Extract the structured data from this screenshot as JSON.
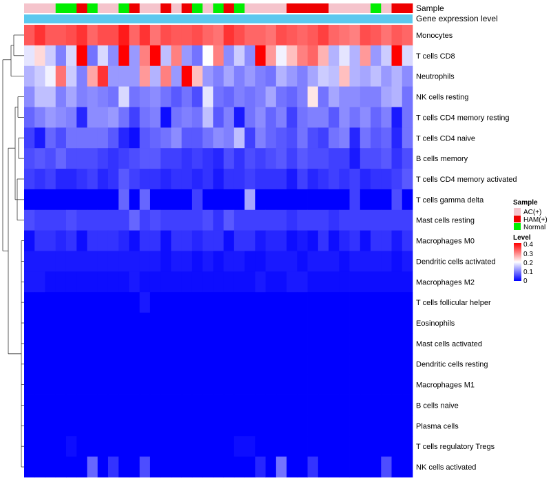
{
  "chart_data": {
    "type": "heatmap",
    "title": "",
    "annotation_tracks": [
      "Sample",
      "Gene expression level"
    ],
    "gene_expression_color": "#5BC8EE",
    "legend": {
      "sample_title": "Sample",
      "sample_entries": [
        {
          "label": "AC(+)",
          "color": "#F5C4CC"
        },
        {
          "label": "HAM(+)",
          "color": "#EE0000"
        },
        {
          "label": "Normal",
          "color": "#00EE00"
        }
      ],
      "level_title": "Level",
      "level_ticks": [
        "0.4",
        "0.3",
        "0.2",
        "0.1",
        "0"
      ],
      "color_low": "#0000FF",
      "color_mid": "#FFFFFF",
      "color_high": "#FF0000",
      "range": [
        0,
        0.4
      ]
    },
    "samples": [
      "AC(+)",
      "AC(+)",
      "AC(+)",
      "Normal",
      "Normal",
      "HAM(+)",
      "Normal",
      "AC(+)",
      "AC(+)",
      "Normal",
      "HAM(+)",
      "AC(+)",
      "AC(+)",
      "HAM(+)",
      "AC(+)",
      "HAM(+)",
      "Normal",
      "AC(+)",
      "Normal",
      "HAM(+)",
      "Normal",
      "AC(+)",
      "AC(+)",
      "AC(+)",
      "AC(+)",
      "HAM(+)",
      "HAM(+)",
      "HAM(+)",
      "HAM(+)",
      "AC(+)",
      "AC(+)",
      "AC(+)",
      "AC(+)",
      "Normal",
      "AC(+)",
      "HAM(+)",
      "HAM(+)"
    ],
    "rows": [
      "Monocytes",
      "T cells CD8",
      "Neutrophils",
      "NK cells resting",
      "T cells CD4 memory resting",
      "T cells CD4 naive",
      "B cells memory",
      "T cells CD4 memory activated",
      "T cells gamma delta",
      "Mast cells resting",
      "Macrophages M0",
      "Dendritic cells activated",
      "Macrophages M2",
      "T cells follicular helper",
      "Eosinophils",
      "Mast cells activated",
      "Dendritic cells resting",
      "Macrophages M1",
      "B cells naive",
      "Plasma cells",
      "T cells regulatory  Tregs",
      "NK cells activated"
    ],
    "values": [
      [
        0.33,
        0.36,
        0.33,
        0.33,
        0.34,
        0.36,
        0.32,
        0.34,
        0.34,
        0.38,
        0.32,
        0.36,
        0.31,
        0.34,
        0.33,
        0.33,
        0.34,
        0.32,
        0.31,
        0.36,
        0.34,
        0.32,
        0.32,
        0.31,
        0.34,
        0.33,
        0.32,
        0.33,
        0.35,
        0.32,
        0.31,
        0.3,
        0.34,
        0.33,
        0.31,
        0.33,
        0.32
      ],
      [
        0.18,
        0.23,
        0.16,
        0.1,
        0.17,
        0.4,
        0.09,
        0.17,
        0.11,
        0.4,
        0.12,
        0.3,
        0.4,
        0.15,
        0.3,
        0.12,
        0.09,
        0.2,
        0.3,
        0.11,
        0.16,
        0.11,
        0.4,
        0.28,
        0.19,
        0.25,
        0.3,
        0.32,
        0.26,
        0.14,
        0.18,
        0.14,
        0.28,
        0.12,
        0.16,
        0.4,
        0.17
      ],
      [
        0.14,
        0.16,
        0.19,
        0.31,
        0.16,
        0.1,
        0.27,
        0.36,
        0.12,
        0.12,
        0.12,
        0.28,
        0.14,
        0.3,
        0.12,
        0.4,
        0.25,
        0.12,
        0.1,
        0.13,
        0.1,
        0.12,
        0.1,
        0.09,
        0.14,
        0.12,
        0.1,
        0.13,
        0.16,
        0.15,
        0.25,
        0.14,
        0.13,
        0.15,
        0.12,
        0.14,
        0.11
      ],
      [
        0.11,
        0.15,
        0.15,
        0.1,
        0.13,
        0.1,
        0.11,
        0.1,
        0.09,
        0.17,
        0.09,
        0.1,
        0.11,
        0.09,
        0.07,
        0.09,
        0.06,
        0.18,
        0.09,
        0.08,
        0.1,
        0.09,
        0.1,
        0.13,
        0.09,
        0.08,
        0.1,
        0.22,
        0.09,
        0.13,
        0.11,
        0.11,
        0.1,
        0.1,
        0.13,
        0.14,
        0.09
      ],
      [
        0.08,
        0.1,
        0.12,
        0.11,
        0.1,
        0.03,
        0.11,
        0.11,
        0.12,
        0.09,
        0.05,
        0.09,
        0.1,
        0.01,
        0.09,
        0.1,
        0.09,
        0.15,
        0.07,
        0.1,
        0.02,
        0.09,
        0.11,
        0.08,
        0.1,
        0.05,
        0.09,
        0.1,
        0.1,
        0.07,
        0.11,
        0.09,
        0.11,
        0.08,
        0.1,
        0.02,
        0.09
      ],
      [
        0.05,
        0.02,
        0.08,
        0.06,
        0.09,
        0.09,
        0.09,
        0.09,
        0.07,
        0.03,
        0.01,
        0.07,
        0.08,
        0.09,
        0.11,
        0.07,
        0.07,
        0.09,
        0.11,
        0.1,
        0.15,
        0.05,
        0.1,
        0.08,
        0.07,
        0.06,
        0.09,
        0.06,
        0.05,
        0.09,
        0.1,
        0.03,
        0.09,
        0.07,
        0.08,
        0.03,
        0.09
      ],
      [
        0.06,
        0.07,
        0.06,
        0.08,
        0.06,
        0.06,
        0.06,
        0.05,
        0.04,
        0.05,
        0.06,
        0.07,
        0.07,
        0.05,
        0.05,
        0.04,
        0.05,
        0.04,
        0.03,
        0.06,
        0.04,
        0.06,
        0.05,
        0.06,
        0.07,
        0.05,
        0.07,
        0.06,
        0.06,
        0.05,
        0.05,
        0.02,
        0.06,
        0.06,
        0.07,
        0.04,
        0.06
      ],
      [
        0.05,
        0.04,
        0.05,
        0.03,
        0.03,
        0.04,
        0.05,
        0.03,
        0.04,
        0.07,
        0.05,
        0.04,
        0.04,
        0.03,
        0.04,
        0.04,
        0.03,
        0.04,
        0.02,
        0.04,
        0.04,
        0.05,
        0.04,
        0.04,
        0.04,
        0.02,
        0.05,
        0.03,
        0.04,
        0.05,
        0.04,
        0.05,
        0.03,
        0.04,
        0.04,
        0.05,
        0.07
      ],
      [
        0.0,
        0.0,
        0.0,
        0.0,
        0.0,
        0.0,
        0.0,
        0.0,
        0.0,
        0.08,
        0.0,
        0.08,
        0.0,
        0.0,
        0.0,
        0.0,
        0.05,
        0.0,
        0.0,
        0.0,
        0.0,
        0.13,
        0.0,
        0.0,
        0.0,
        0.0,
        0.0,
        0.0,
        0.0,
        0.0,
        0.0,
        0.05,
        0.0,
        0.0,
        0.0,
        0.06,
        0.0
      ],
      [
        0.06,
        0.05,
        0.05,
        0.05,
        0.06,
        0.05,
        0.05,
        0.05,
        0.05,
        0.05,
        0.08,
        0.05,
        0.06,
        0.05,
        0.05,
        0.05,
        0.05,
        0.06,
        0.04,
        0.07,
        0.05,
        0.05,
        0.05,
        0.05,
        0.05,
        0.04,
        0.05,
        0.05,
        0.05,
        0.04,
        0.05,
        0.05,
        0.05,
        0.05,
        0.05,
        0.05,
        0.05
      ],
      [
        0.01,
        0.04,
        0.04,
        0.03,
        0.04,
        0.01,
        0.04,
        0.04,
        0.04,
        0.03,
        0.01,
        0.04,
        0.04,
        0.01,
        0.04,
        0.04,
        0.03,
        0.04,
        0.04,
        0.01,
        0.04,
        0.04,
        0.02,
        0.03,
        0.03,
        0.01,
        0.02,
        0.01,
        0.04,
        0.01,
        0.03,
        0.04,
        0.01,
        0.04,
        0.04,
        0.02,
        0.04
      ],
      [
        0.02,
        0.02,
        0.02,
        0.02,
        0.02,
        0.02,
        0.02,
        0.02,
        0.02,
        0.02,
        0.02,
        0.02,
        0.02,
        0.01,
        0.02,
        0.02,
        0.01,
        0.02,
        0.01,
        0.02,
        0.02,
        0.01,
        0.01,
        0.02,
        0.02,
        0.02,
        0.01,
        0.02,
        0.02,
        0.02,
        0.01,
        0.02,
        0.02,
        0.02,
        0.02,
        0.01,
        0.02
      ],
      [
        0.02,
        0.02,
        0.01,
        0.01,
        0.01,
        0.01,
        0.01,
        0.01,
        0.01,
        0.01,
        0.02,
        0.01,
        0.01,
        0.01,
        0.01,
        0.01,
        0.01,
        0.01,
        0.01,
        0.01,
        0.01,
        0.01,
        0.02,
        0.01,
        0.01,
        0.02,
        0.02,
        0.01,
        0.01,
        0.01,
        0.01,
        0.01,
        0.01,
        0.01,
        0.01,
        0.01,
        0.01
      ],
      [
        0.0,
        0.0,
        0.0,
        0.0,
        0.0,
        0.0,
        0.0,
        0.0,
        0.0,
        0.0,
        0.0,
        0.02,
        0.0,
        0.0,
        0.0,
        0.0,
        0.0,
        0.0,
        0.0,
        0.0,
        0.0,
        0.0,
        0.0,
        0.0,
        0.0,
        0.0,
        0.0,
        0.0,
        0.0,
        0.0,
        0.0,
        0.0,
        0.0,
        0.0,
        0.0,
        0.0,
        0.0
      ],
      [
        0.0,
        0.0,
        0.0,
        0.0,
        0.0,
        0.0,
        0.0,
        0.0,
        0.0,
        0.0,
        0.0,
        0.0,
        0.0,
        0.0,
        0.0,
        0.0,
        0.0,
        0.0,
        0.0,
        0.0,
        0.0,
        0.0,
        0.0,
        0.0,
        0.0,
        0.0,
        0.0,
        0.0,
        0.0,
        0.0,
        0.0,
        0.0,
        0.0,
        0.0,
        0.0,
        0.0,
        0.0
      ],
      [
        0.0,
        0.0,
        0.0,
        0.0,
        0.0,
        0.0,
        0.0,
        0.0,
        0.0,
        0.0,
        0.0,
        0.0,
        0.0,
        0.0,
        0.0,
        0.0,
        0.0,
        0.0,
        0.0,
        0.0,
        0.0,
        0.0,
        0.0,
        0.0,
        0.0,
        0.0,
        0.0,
        0.0,
        0.0,
        0.0,
        0.0,
        0.0,
        0.0,
        0.0,
        0.0,
        0.0,
        0.0
      ],
      [
        0.0,
        0.0,
        0.0,
        0.0,
        0.0,
        0.0,
        0.0,
        0.0,
        0.0,
        0.0,
        0.0,
        0.0,
        0.0,
        0.0,
        0.0,
        0.0,
        0.0,
        0.0,
        0.0,
        0.0,
        0.0,
        0.0,
        0.0,
        0.0,
        0.0,
        0.0,
        0.0,
        0.0,
        0.0,
        0.0,
        0.0,
        0.0,
        0.0,
        0.0,
        0.0,
        0.0,
        0.0
      ],
      [
        0.0,
        0.0,
        0.0,
        0.0,
        0.0,
        0.0,
        0.0,
        0.0,
        0.0,
        0.0,
        0.0,
        0.0,
        0.0,
        0.0,
        0.0,
        0.0,
        0.0,
        0.0,
        0.0,
        0.0,
        0.0,
        0.0,
        0.0,
        0.0,
        0.0,
        0.0,
        0.0,
        0.0,
        0.0,
        0.0,
        0.0,
        0.0,
        0.0,
        0.0,
        0.0,
        0.0,
        0.0
      ],
      [
        0.0,
        0.0,
        0.0,
        0.0,
        0.0,
        0.0,
        0.0,
        0.0,
        0.0,
        0.0,
        0.0,
        0.0,
        0.0,
        0.0,
        0.0,
        0.0,
        0.0,
        0.0,
        0.0,
        0.0,
        0.0,
        0.0,
        0.0,
        0.0,
        0.0,
        0.0,
        0.0,
        0.0,
        0.0,
        0.0,
        0.0,
        0.0,
        0.0,
        0.0,
        0.0,
        0.0,
        0.0
      ],
      [
        0.0,
        0.0,
        0.0,
        0.0,
        0.0,
        0.0,
        0.0,
        0.0,
        0.0,
        0.0,
        0.0,
        0.0,
        0.0,
        0.0,
        0.0,
        0.0,
        0.0,
        0.0,
        0.0,
        0.0,
        0.0,
        0.0,
        0.0,
        0.0,
        0.0,
        0.0,
        0.0,
        0.0,
        0.0,
        0.0,
        0.0,
        0.0,
        0.0,
        0.0,
        0.0,
        0.0,
        0.0
      ],
      [
        0.0,
        0.0,
        0.0,
        0.0,
        0.01,
        0.0,
        0.0,
        0.0,
        0.0,
        0.0,
        0.0,
        0.0,
        0.0,
        0.0,
        0.0,
        0.0,
        0.0,
        0.0,
        0.0,
        0.0,
        0.01,
        0.01,
        0.0,
        0.0,
        0.0,
        0.0,
        0.0,
        0.0,
        0.0,
        0.0,
        0.0,
        0.0,
        0.0,
        0.0,
        0.0,
        0.0,
        0.0
      ],
      [
        0.0,
        0.0,
        0.0,
        0.0,
        0.0,
        0.0,
        0.08,
        0.0,
        0.04,
        0.0,
        0.0,
        0.06,
        0.0,
        0.0,
        0.0,
        0.0,
        0.0,
        0.0,
        0.0,
        0.0,
        0.0,
        0.0,
        0.03,
        0.0,
        0.09,
        0.0,
        0.0,
        0.04,
        0.0,
        0.0,
        0.0,
        0.0,
        0.0,
        0.0,
        0.06,
        0.0,
        0.0
      ]
    ]
  }
}
